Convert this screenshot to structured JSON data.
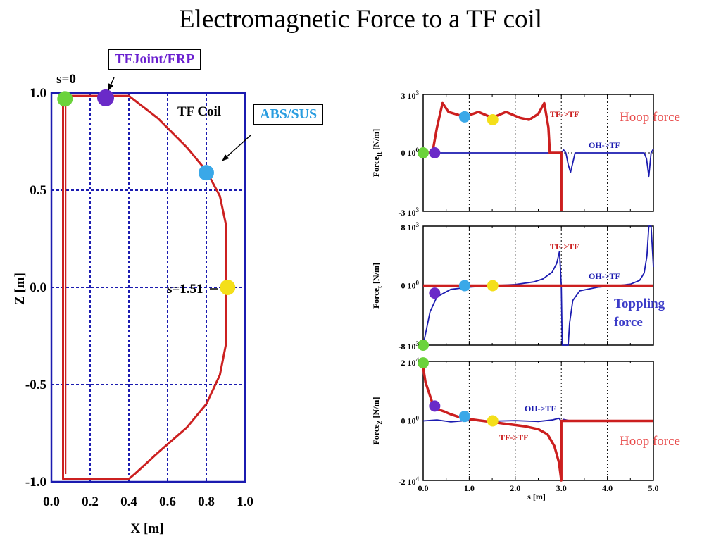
{
  "title": "Electromagnetic Force to a TF coil",
  "colors": {
    "coil": "#cc2020",
    "tf": "#cc1f1f",
    "oh": "#1b1bb0",
    "green": "#6bd33b",
    "purple": "#6a2ac8",
    "cyan": "#3aa8e8",
    "yellow": "#f4df1a",
    "grid": "#1b1bb0",
    "hoop": "#e84a4a",
    "toppling": "#3b3bc8"
  },
  "callouts": {
    "joint": "TFJoint/FRP",
    "abs": "ABS/SUS"
  },
  "shape_plot": {
    "xlabel": "X [m]",
    "ylabel": "Z [m]",
    "xticks": [
      "0.0",
      "0.2",
      "0.4",
      "0.6",
      "0.8",
      "1.0"
    ],
    "yticks": [
      "1.0",
      "0.5",
      "0.0",
      "-0.5",
      "-1.0"
    ],
    "label_s0": "s=0",
    "label_s151": "s=1.51",
    "label_coil": "TF Coil"
  },
  "panels": {
    "r": {
      "ytop_base": "3 10",
      "ytop_exp": "3",
      "ymid_base": "0 10",
      "ymid_exp": "0",
      "ybot_base": "-3 10",
      "ybot_exp": "3",
      "ylabel_main": "Force",
      "ylabel_sub": "R",
      "ylabel_unit": " [N/m]",
      "tf_label": "TF->TF",
      "oh_label": "OH->TF",
      "note": "Hoop force"
    },
    "t": {
      "ytop_base": "8 10",
      "ytop_exp": "3",
      "ymid_base": "0 10",
      "ymid_exp": "0",
      "ybot_base": "-8 10",
      "ybot_exp": "3",
      "ylabel_main": "Force",
      "ylabel_sub": "t",
      "ylabel_unit": " [N/m]",
      "tf_label": "TF->TF",
      "oh_label": "OH->TF",
      "note1": "Toppling",
      "note2": "force"
    },
    "z": {
      "ytop_base": "2 10",
      "ytop_exp": "4",
      "ymid_base": "0 10",
      "ymid_exp": "0",
      "ybot_base": "-2 10",
      "ybot_exp": "4",
      "ylabel_main": "Force",
      "ylabel_sub": "Z",
      "ylabel_unit": " [N/m]",
      "tf_label": "TF->TF",
      "oh_label": "OH->TF",
      "note": "Hoop force",
      "xticks": [
        "0.0",
        "1.0",
        "2.0",
        "3.0",
        "4.0",
        "5.0"
      ],
      "xlabel": "s [m]"
    }
  },
  "chart_data": [
    {
      "type": "line",
      "xlabel": "X [m]",
      "ylabel": "Z [m]",
      "xlim": [
        0,
        1.0
      ],
      "ylim": [
        -1.0,
        1.0
      ],
      "grid": true,
      "series": [
        {
          "name": "TF Coil",
          "x": [
            0.06,
            0.4,
            0.55,
            0.7,
            0.8,
            0.87,
            0.9,
            0.9,
            0.87,
            0.8,
            0.7,
            0.55,
            0.43,
            0.4,
            0.06,
            0.06
          ],
          "y": [
            0.985,
            0.985,
            0.87,
            0.72,
            0.6,
            0.47,
            0.33,
            -0.3,
            -0.45,
            -0.6,
            -0.72,
            -0.85,
            -0.96,
            -0.985,
            -0.985,
            0.985
          ]
        }
      ],
      "markers": [
        {
          "label": "s=0",
          "x": 0.07,
          "y": 0.97
        },
        {
          "label": "TFJoint/FRP",
          "x": 0.28,
          "y": 0.975
        },
        {
          "label": "ABS/SUS",
          "x": 0.8,
          "y": 0.59
        },
        {
          "label": "s=1.51",
          "x": 0.91,
          "y": 0.0
        }
      ]
    },
    {
      "type": "line",
      "ylabel": "Force_R [N/m]",
      "xlim": [
        0,
        5.0
      ],
      "ylim": [
        -3000,
        3000
      ],
      "series": [
        {
          "name": "TF->TF",
          "x": [
            0,
            0.2,
            0.3,
            0.42,
            0.55,
            0.9,
            1.2,
            1.5,
            1.8,
            2.1,
            2.3,
            2.5,
            2.63,
            2.72,
            2.75,
            3.0,
            3.0
          ],
          "y": [
            0,
            0,
            1300,
            2550,
            2100,
            1850,
            2100,
            1800,
            2100,
            1800,
            1700,
            2000,
            2550,
            1300,
            0,
            0,
            -3000
          ]
        },
        {
          "name": "OH->TF",
          "x": [
            0,
            2.9,
            3.0,
            3.05,
            3.1,
            3.15,
            3.2,
            3.3,
            4.8,
            4.85,
            4.9,
            4.95,
            5.0
          ],
          "y": [
            0,
            0,
            0,
            150,
            0,
            -600,
            -1000,
            0,
            0,
            -300,
            -1200,
            0,
            200
          ]
        }
      ],
      "markers": [
        {
          "x": 0.0,
          "y": 0
        },
        {
          "x": 0.25,
          "y": 0
        },
        {
          "x": 0.9,
          "y": 1850
        },
        {
          "x": 1.51,
          "y": 1700
        }
      ]
    },
    {
      "type": "line",
      "ylabel": "Force_t [N/m]",
      "xlim": [
        0,
        5.0
      ],
      "ylim": [
        -8000,
        8000
      ],
      "series": [
        {
          "name": "TF->TF",
          "x": [
            0,
            5.0
          ],
          "y": [
            0,
            0
          ]
        },
        {
          "name": "OH->TF",
          "x": [
            0,
            0.05,
            0.15,
            0.3,
            0.6,
            1.0,
            1.5,
            2.0,
            2.4,
            2.6,
            2.8,
            2.9,
            2.96,
            3.0,
            3.02,
            3.15,
            3.18,
            3.25,
            3.4,
            3.8,
            4.2,
            4.5,
            4.7,
            4.8,
            4.86,
            4.9,
            4.95,
            5.0
          ],
          "y": [
            -8000,
            -6500,
            -3500,
            -1500,
            -500,
            -200,
            0,
            150,
            500,
            900,
            1800,
            3000,
            4600,
            0,
            -8000,
            -8000,
            -5000,
            -2000,
            -700,
            -200,
            0,
            200,
            700,
            1700,
            4000,
            8000,
            8000,
            2500
          ]
        }
      ],
      "markers": [
        {
          "x": 0.0,
          "y": -8000
        },
        {
          "x": 0.25,
          "y": -1000
        },
        {
          "x": 0.9,
          "y": 0
        },
        {
          "x": 1.51,
          "y": 0
        }
      ]
    },
    {
      "type": "line",
      "ylabel": "Force_Z [N/m]",
      "xlabel": "s [m]",
      "xlim": [
        0,
        5.0
      ],
      "ylim": [
        -20000,
        20000
      ],
      "xticks": [
        0,
        1,
        2,
        3,
        4,
        5
      ],
      "series": [
        {
          "name": "TF->TF",
          "x": [
            0,
            0.05,
            0.2,
            0.3,
            0.45,
            0.6,
            0.8,
            1.0,
            1.3,
            1.6,
            1.9,
            2.2,
            2.5,
            2.7,
            2.85,
            2.95,
            3.0,
            3.0,
            5.0
          ],
          "y": [
            18000,
            13000,
            6000,
            4000,
            3200,
            2200,
            1200,
            600,
            0,
            -600,
            -1200,
            -1800,
            -2800,
            -4500,
            -8500,
            -14000,
            -20000,
            0,
            0
          ]
        },
        {
          "name": "OH->TF",
          "x": [
            0,
            0.3,
            0.6,
            1.0,
            1.5,
            2.0,
            2.5,
            2.8,
            2.95,
            3.0,
            3.05,
            3.2,
            5.0
          ],
          "y": [
            0,
            300,
            -300,
            200,
            -100,
            100,
            -200,
            300,
            900,
            -200,
            500,
            0,
            0
          ]
        }
      ],
      "markers": [
        {
          "x": 0.0,
          "y": 19500
        },
        {
          "x": 0.25,
          "y": 5000
        },
        {
          "x": 0.9,
          "y": 1500
        },
        {
          "x": 1.51,
          "y": 0
        }
      ]
    }
  ]
}
